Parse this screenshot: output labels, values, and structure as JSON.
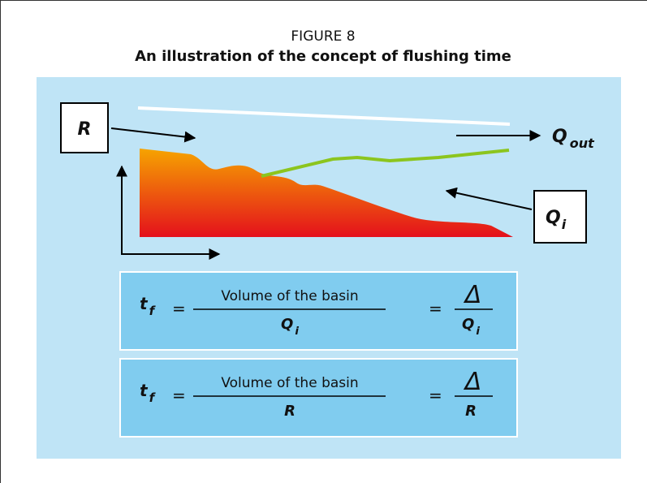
{
  "header": {
    "figure": "FIGURE 8",
    "title": "An illustration of the concept of flushing time"
  },
  "labels": {
    "r": "R",
    "q_out": {
      "main": "Q",
      "sub": "out"
    },
    "q_i": {
      "main": "Q",
      "sub": "i"
    }
  },
  "equations": [
    {
      "lhs": {
        "main": "t",
        "sub": "f"
      },
      "eq1": "=",
      "numerator": "Volume of the basin",
      "denominator": {
        "main": "Q",
        "sub": "i"
      },
      "eq2": "=",
      "numerator2": "Δ",
      "denominator2": {
        "main": "Q",
        "sub": "i"
      }
    },
    {
      "lhs": {
        "main": "t",
        "sub": "f"
      },
      "eq1": "=",
      "numerator": "Volume of the basin",
      "denominator": {
        "main": "R"
      },
      "eq2": "=",
      "numerator2": "Δ",
      "denominator2": {
        "main": "R"
      }
    }
  ]
}
